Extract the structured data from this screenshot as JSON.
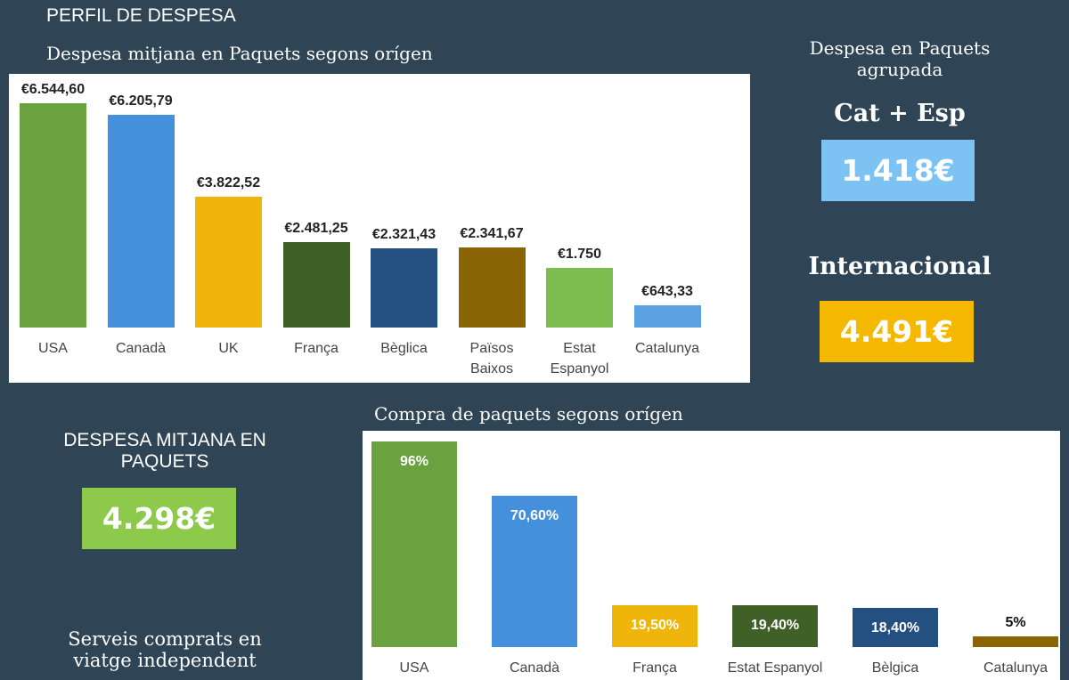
{
  "page": {
    "title": "PERFIL DE DESPESA"
  },
  "summary": {
    "grouped_title": "Despesa en Paquets agrupada",
    "cat_esp_label": "Cat + Esp",
    "cat_esp_value": "1.418€",
    "cat_esp_color": "#7cc3f3",
    "intl_label": "Internacional",
    "intl_value": "4.491€",
    "intl_color": "#f5b800",
    "avg_title": "DESPESA MITJANA EN PAQUETS",
    "avg_value": "4.298€",
    "avg_color": "#8dca4b",
    "services_title": "Serveis comprats en viatge independent"
  },
  "chart_data": [
    {
      "type": "bar",
      "title": "Despesa mitjana en Paquets segons orígen",
      "categories": [
        "USA",
        "Canadà",
        "UK",
        "França",
        "Bèglica",
        "Països Baixos",
        "Estat Espanyol",
        "Catalunya"
      ],
      "values": [
        6544.6,
        6205.79,
        3822.52,
        2481.25,
        2321.43,
        2341.67,
        1750,
        643.33
      ],
      "labels": [
        "€6.544,60",
        "€6.205,79",
        "€3.822,52",
        "€2.481,25",
        "€2.321,43",
        "€2.341,67",
        "€1.750",
        "€643,33"
      ],
      "colors": [
        "#69a23e",
        "#4590dc",
        "#f0b50a",
        "#3f6027",
        "#235080",
        "#8a6405",
        "#7dbd50",
        "#5ba2e2"
      ],
      "ylim": [
        0,
        7000
      ],
      "grid": false
    },
    {
      "type": "bar",
      "title": "Compra de paquets segons orígen",
      "categories": [
        "USA",
        "Canadà",
        "França",
        "Estat Espanyol",
        "Bèlgica",
        "Catalunya"
      ],
      "values": [
        96,
        70.6,
        19.5,
        19.4,
        18.4,
        5
      ],
      "labels": [
        "96%",
        "70,60%",
        "19,50%",
        "19,40%",
        "18,40%",
        "5%"
      ],
      "colors": [
        "#69a23e",
        "#4590dc",
        "#f0b50a",
        "#3f6027",
        "#235080",
        "#8a6405"
      ],
      "ylim": [
        0,
        100
      ],
      "grid": false
    }
  ]
}
